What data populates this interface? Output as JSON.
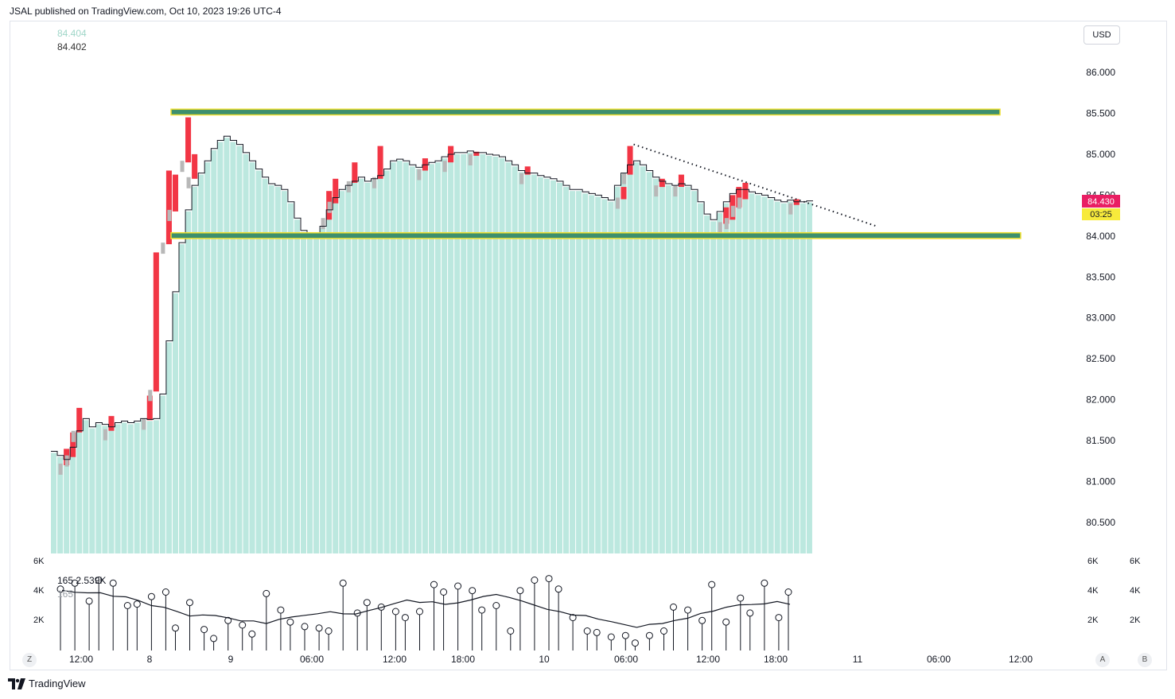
{
  "header": {
    "published": "JSAL published on TradingView.com, Oct 10, 2023 19:26 UTC-4"
  },
  "legend": {
    "value_a": "84.404",
    "value_b": "84.402"
  },
  "currency_button": "USD",
  "last_price_label": "84.430",
  "countdown_label": "03:25",
  "volume_legend": {
    "value_a": "165",
    "value_b": "2.539K",
    "value_c": "165"
  },
  "corner_buttons": {
    "left": "Z",
    "right_a": "A",
    "right_b": "B"
  },
  "footer": {
    "brand": "TradingView"
  },
  "colors": {
    "area_fill": "#bce8df",
    "down_bar": "#f23645",
    "grey_bar": "#b8b8b8",
    "zone_fill": "#3d8f6e",
    "zone_border": "#f0e030",
    "price_tag": "#e91e63",
    "countdown_tag": "#f7ea3b"
  },
  "chart_data": {
    "type": "bar",
    "y_axis": {
      "ticks": [
        "86.000",
        "85.500",
        "85.000",
        "84.500",
        "84.000",
        "83.500",
        "83.000",
        "82.500",
        "82.000",
        "81.500",
        "81.000",
        "80.500"
      ],
      "ylim": [
        80.1,
        86.4
      ]
    },
    "x_axis": {
      "ticks": [
        "12:00",
        "8",
        "9",
        "06:00",
        "12:00",
        "18:00",
        "10",
        "06:00",
        "12:00",
        "18:00",
        "11",
        "06:00",
        "12:00"
      ]
    },
    "volume_axis": {
      "ticks_left": [
        "6K",
        "4K",
        "2K"
      ],
      "ticks_right_a": [
        "6K",
        "4K",
        "2K"
      ],
      "ticks_right_b": [
        "6K",
        "4K",
        "2K"
      ]
    },
    "price_series": [
      81.35,
      81.3,
      81.25,
      81.4,
      81.6,
      81.75,
      81.65,
      81.7,
      81.68,
      81.65,
      81.7,
      81.72,
      81.7,
      81.72,
      81.75,
      81.74,
      81.75,
      82.05,
      82.7,
      83.3,
      83.9,
      84.3,
      84.6,
      84.75,
      84.9,
      85.05,
      85.15,
      85.2,
      85.15,
      85.1,
      85.0,
      84.9,
      84.8,
      84.7,
      84.62,
      84.6,
      84.55,
      84.4,
      84.2,
      84.05,
      84.02,
      84.0,
      84.1,
      84.3,
      84.45,
      84.55,
      84.6,
      84.65,
      84.7,
      84.65,
      84.68,
      84.72,
      84.8,
      84.9,
      84.92,
      84.9,
      84.85,
      84.82,
      84.85,
      84.88,
      84.9,
      84.95,
      84.98,
      85.0,
      85.0,
      85.02,
      85.0,
      85.0,
      84.98,
      84.97,
      84.95,
      84.9,
      84.85,
      84.78,
      84.75,
      84.75,
      84.72,
      84.7,
      84.68,
      84.65,
      84.6,
      84.55,
      84.55,
      84.52,
      84.5,
      84.48,
      84.45,
      84.42,
      84.6,
      84.75,
      84.85,
      84.9,
      84.85,
      84.78,
      84.7,
      84.65,
      84.62,
      84.6,
      84.62,
      84.6,
      84.55,
      84.4,
      84.25,
      84.18,
      84.28,
      84.4,
      84.5,
      84.55,
      84.55,
      84.52,
      84.5,
      84.48,
      84.45,
      84.42,
      84.4,
      84.42,
      84.4,
      84.4,
      84.41
    ],
    "down_bars": [
      {
        "i": 2,
        "from": 81.4,
        "to": 81.2
      },
      {
        "i": 3,
        "from": 81.6,
        "to": 81.3
      },
      {
        "i": 4,
        "from": 81.9,
        "to": 81.6
      },
      {
        "i": 9,
        "from": 81.8,
        "to": 81.62
      },
      {
        "i": 15,
        "from": 82.05,
        "to": 81.75
      },
      {
        "i": 16,
        "from": 83.8,
        "to": 82.1
      },
      {
        "i": 18,
        "from": 84.8,
        "to": 83.9
      },
      {
        "i": 19,
        "from": 84.75,
        "to": 84.3
      },
      {
        "i": 21,
        "from": 85.45,
        "to": 84.9
      },
      {
        "i": 22,
        "from": 85.0,
        "to": 84.7
      },
      {
        "i": 43,
        "from": 84.55,
        "to": 84.2
      },
      {
        "i": 44,
        "from": 84.7,
        "to": 84.4
      },
      {
        "i": 47,
        "from": 84.9,
        "to": 84.65
      },
      {
        "i": 51,
        "from": 85.1,
        "to": 84.7
      },
      {
        "i": 58,
        "from": 84.95,
        "to": 84.8
      },
      {
        "i": 62,
        "from": 85.1,
        "to": 84.9
      },
      {
        "i": 66,
        "from": 85.03,
        "to": 84.98
      },
      {
        "i": 74,
        "from": 84.85,
        "to": 84.75
      },
      {
        "i": 89,
        "from": 84.6,
        "to": 84.45
      },
      {
        "i": 90,
        "from": 85.1,
        "to": 84.75
      },
      {
        "i": 95,
        "from": 84.7,
        "to": 84.6
      },
      {
        "i": 98,
        "from": 84.75,
        "to": 84.6
      },
      {
        "i": 105,
        "from": 84.35,
        "to": 84.15
      },
      {
        "i": 106,
        "from": 84.5,
        "to": 84.2
      },
      {
        "i": 107,
        "from": 84.6,
        "to": 84.35
      },
      {
        "i": 108,
        "from": 84.65,
        "to": 84.45
      },
      {
        "i": 116,
        "from": 84.45,
        "to": 84.38
      }
    ],
    "zones": [
      {
        "from": 85.48,
        "to": 85.55,
        "start_index": 20,
        "extend_to": "11 12:00"
      },
      {
        "from": 83.97,
        "to": 84.04,
        "start_index": 20,
        "extend_to": "11 13:00"
      }
    ],
    "trendline": {
      "start": {
        "i": 91,
        "y": 85.12
      },
      "end": {
        "x": "11 06:00",
        "y": 84.12
      },
      "style": "dotted"
    },
    "volume_series": [
      4.1,
      4.5,
      3.3,
      4.7,
      4.5,
      3.0,
      3.1,
      3.6,
      3.9,
      1.5,
      3.2,
      1.4,
      0.8,
      2.0,
      1.7,
      1.1,
      3.8,
      2.7,
      1.9,
      1.6,
      1.5,
      1.3,
      4.5,
      2.5,
      3.2,
      2.9,
      2.6,
      2.2,
      2.6,
      4.4,
      3.9,
      4.3,
      4.0,
      2.7,
      3.0,
      1.3,
      4.0,
      4.7,
      4.8,
      4.1,
      2.2,
      1.3,
      1.2,
      0.9,
      1.0,
      0.5,
      1.0,
      1.3,
      2.9,
      2.7,
      2.0,
      4.4,
      1.9,
      3.5,
      2.5,
      4.5,
      2.2,
      3.9
    ],
    "volume_ma_present": true
  }
}
